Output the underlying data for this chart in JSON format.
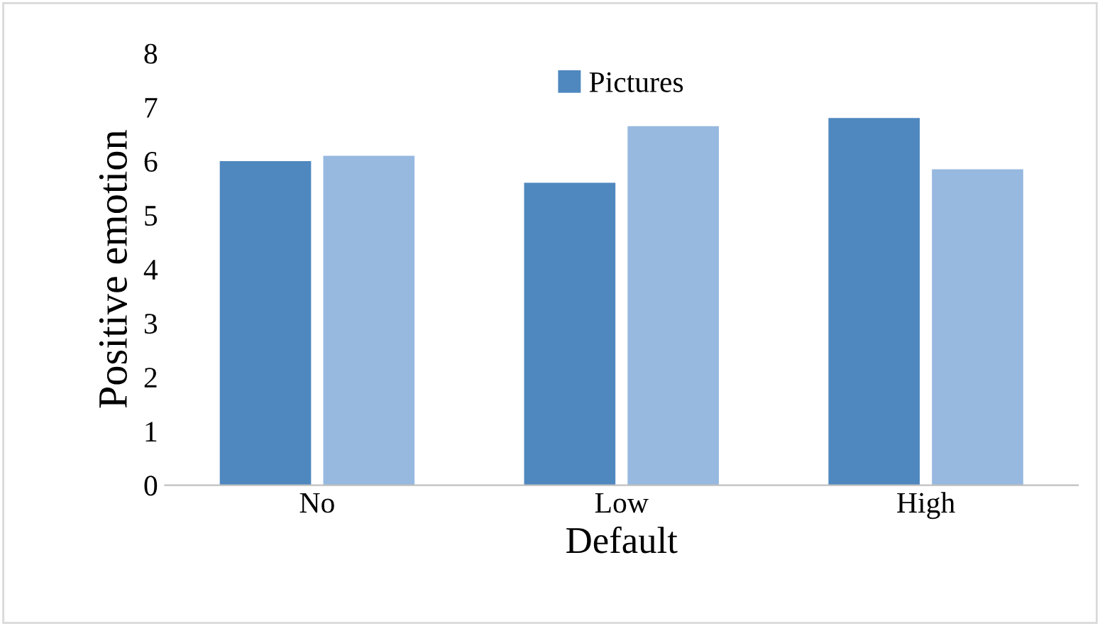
{
  "chart_data": {
    "type": "bar",
    "xlabel": "Default",
    "ylabel": "Positive emotion",
    "categories": [
      "No",
      "Low",
      "High"
    ],
    "series": [
      {
        "name": "Pictures",
        "color": "#4f88bf",
        "values": [
          6.0,
          5.6,
          6.8
        ]
      },
      {
        "color": "#97b9e0",
        "values": [
          6.1,
          6.65,
          5.85
        ]
      }
    ],
    "ylim": [
      0,
      8
    ],
    "yticks": [
      0,
      1,
      2,
      3,
      4,
      5,
      6,
      7,
      8
    ],
    "grid": false,
    "legend": "top"
  }
}
